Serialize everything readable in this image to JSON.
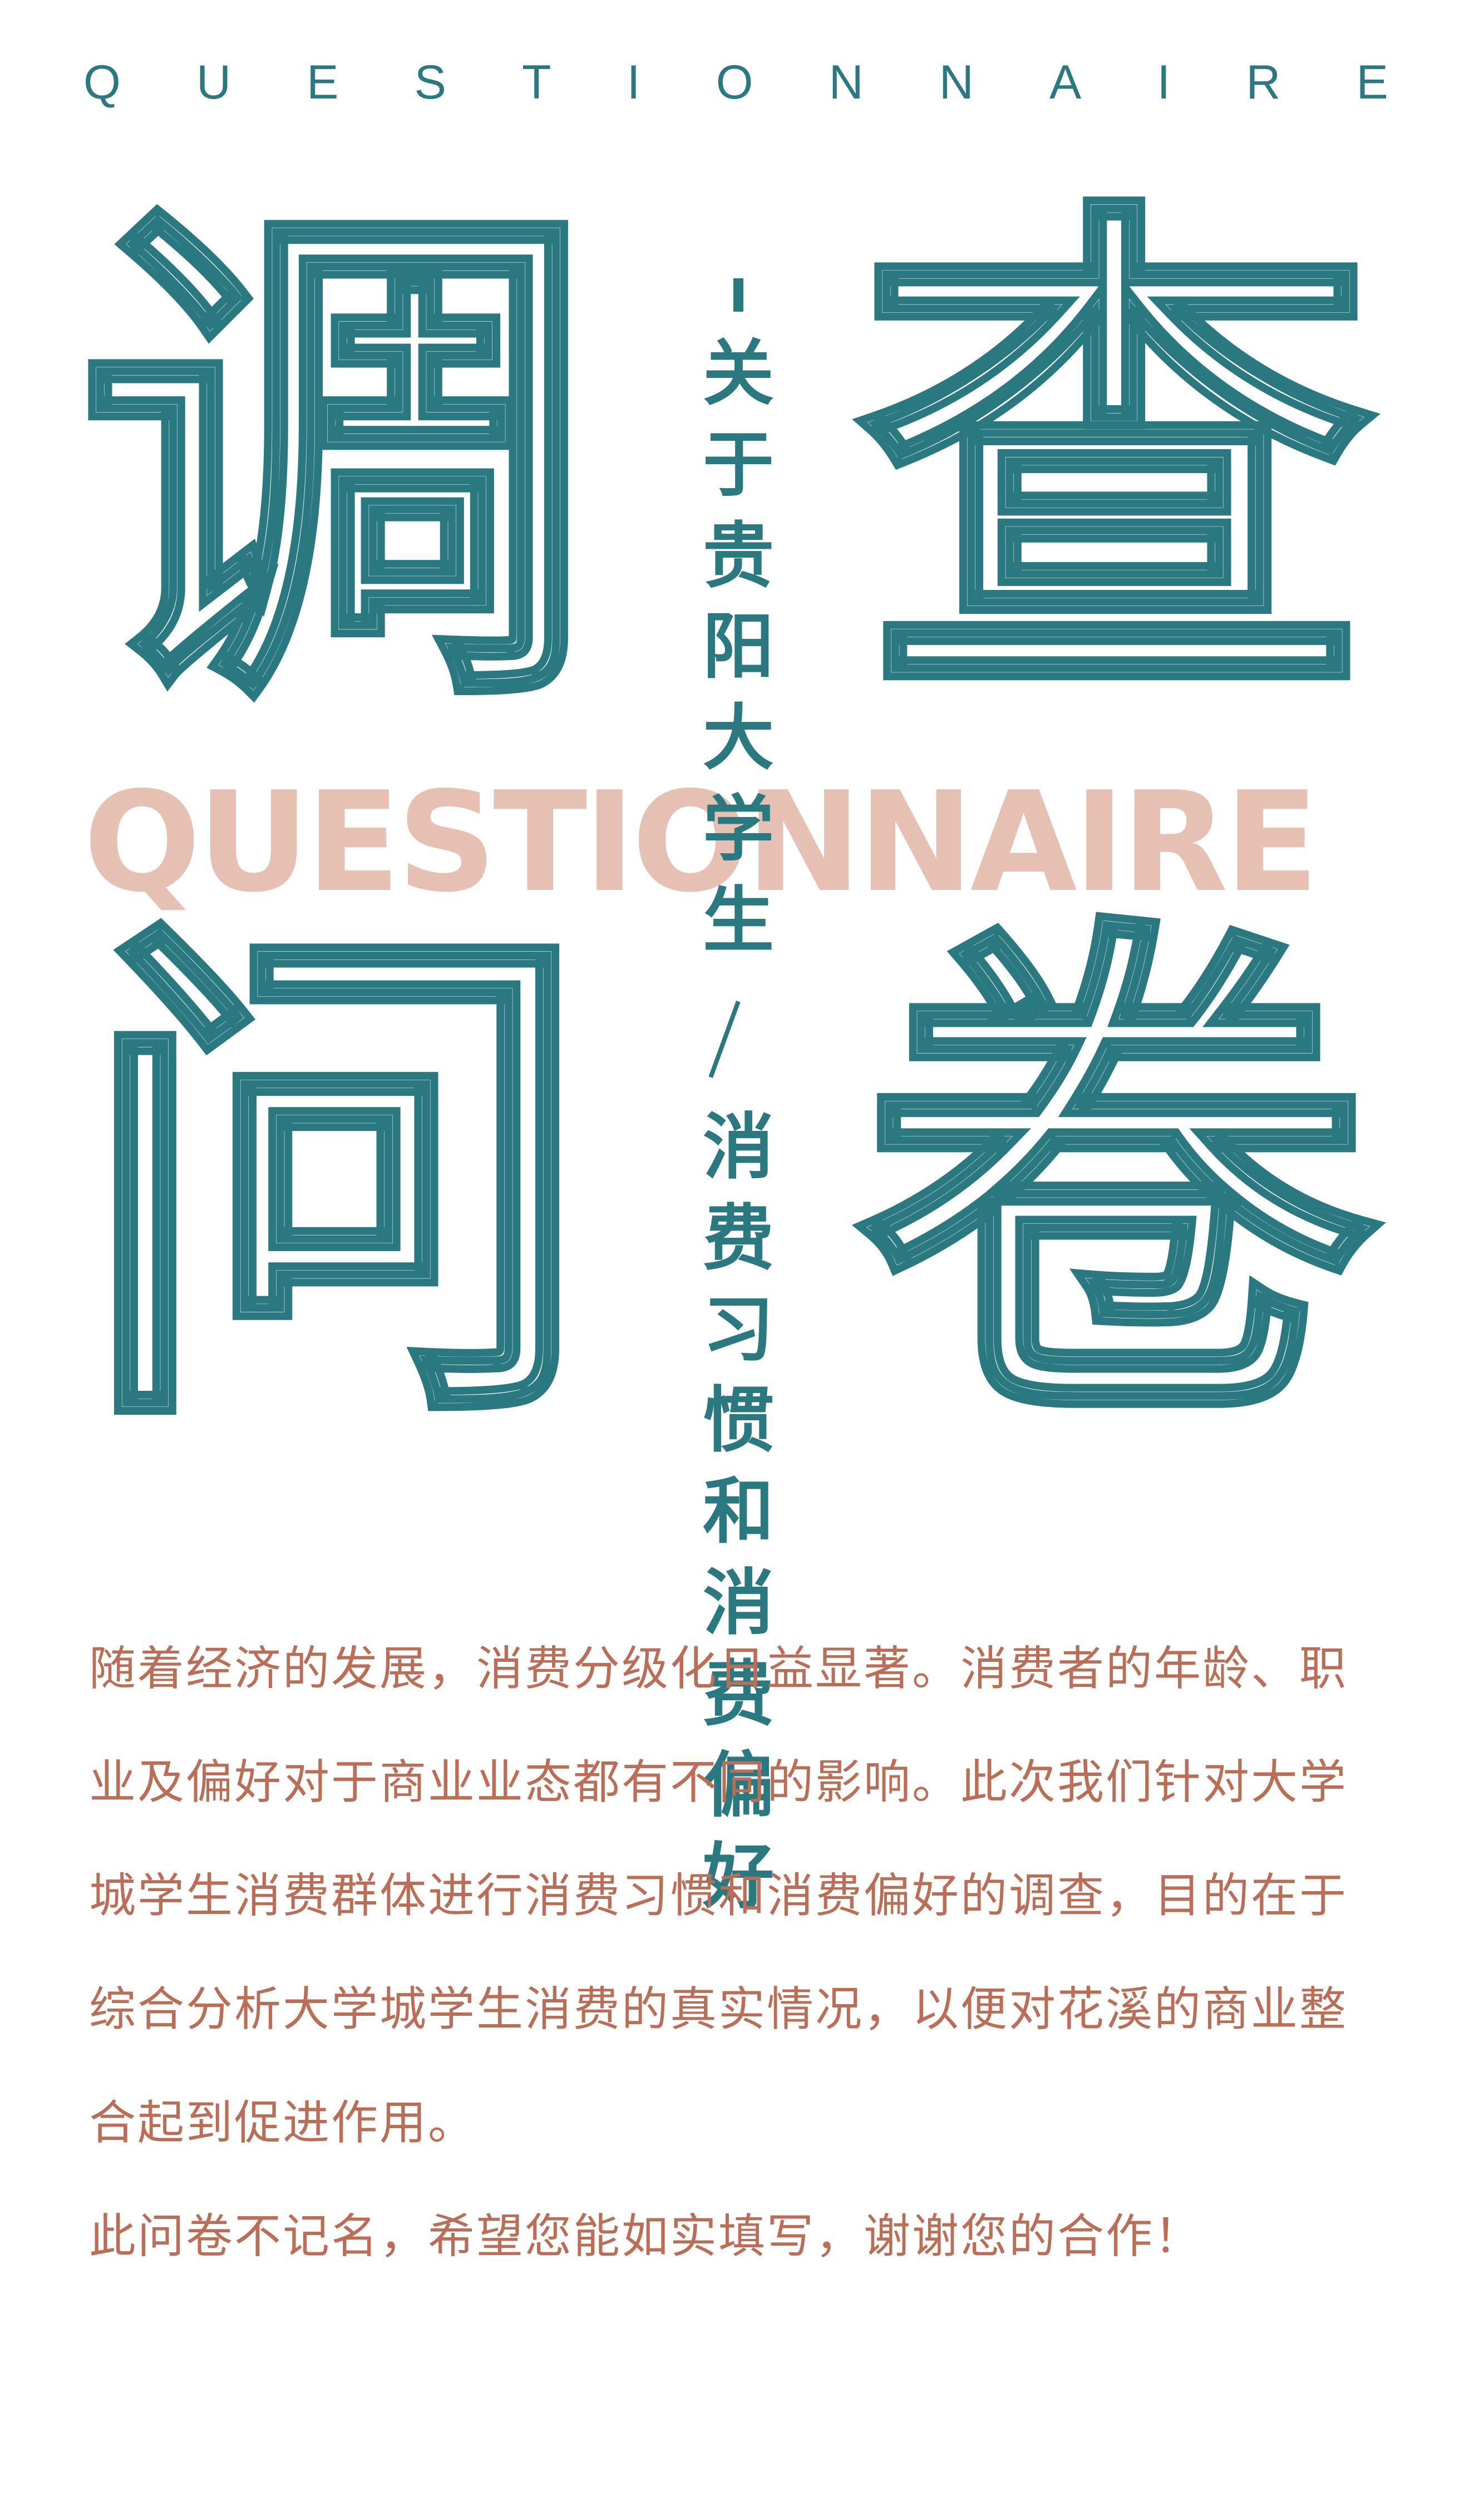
{
  "header": {
    "letters": [
      "Q",
      "U",
      "E",
      "S",
      "T",
      "I",
      "O",
      "N",
      "N",
      "A",
      "I",
      "R",
      "E"
    ]
  },
  "title": {
    "chars": [
      "调",
      "查",
      "问",
      "卷"
    ],
    "background_word": "QUESTIONNAIRE",
    "vertical_line1": "关于贵阳大学生",
    "vertical_line2": "消费习惯和消费偏好",
    "separator": "/"
  },
  "body": {
    "intro": "随着经济的发展，消费分级化日益显著。消费者的年龄、职业及偏好对于商业业态都有不同的影响。此次我们针对大学城学生消费群体进行消费习惯和消费偏好的调查，目的在于综合分析大学城学生消费的真实情况，以便对花溪的商业整合起到促进作用。",
    "note": "此问卷不记名，希望您能如实填写，谢谢您的合作！"
  },
  "colors": {
    "teal": "#2a7880",
    "salmon": "#e6c1b3",
    "text": "#bc6d55"
  }
}
